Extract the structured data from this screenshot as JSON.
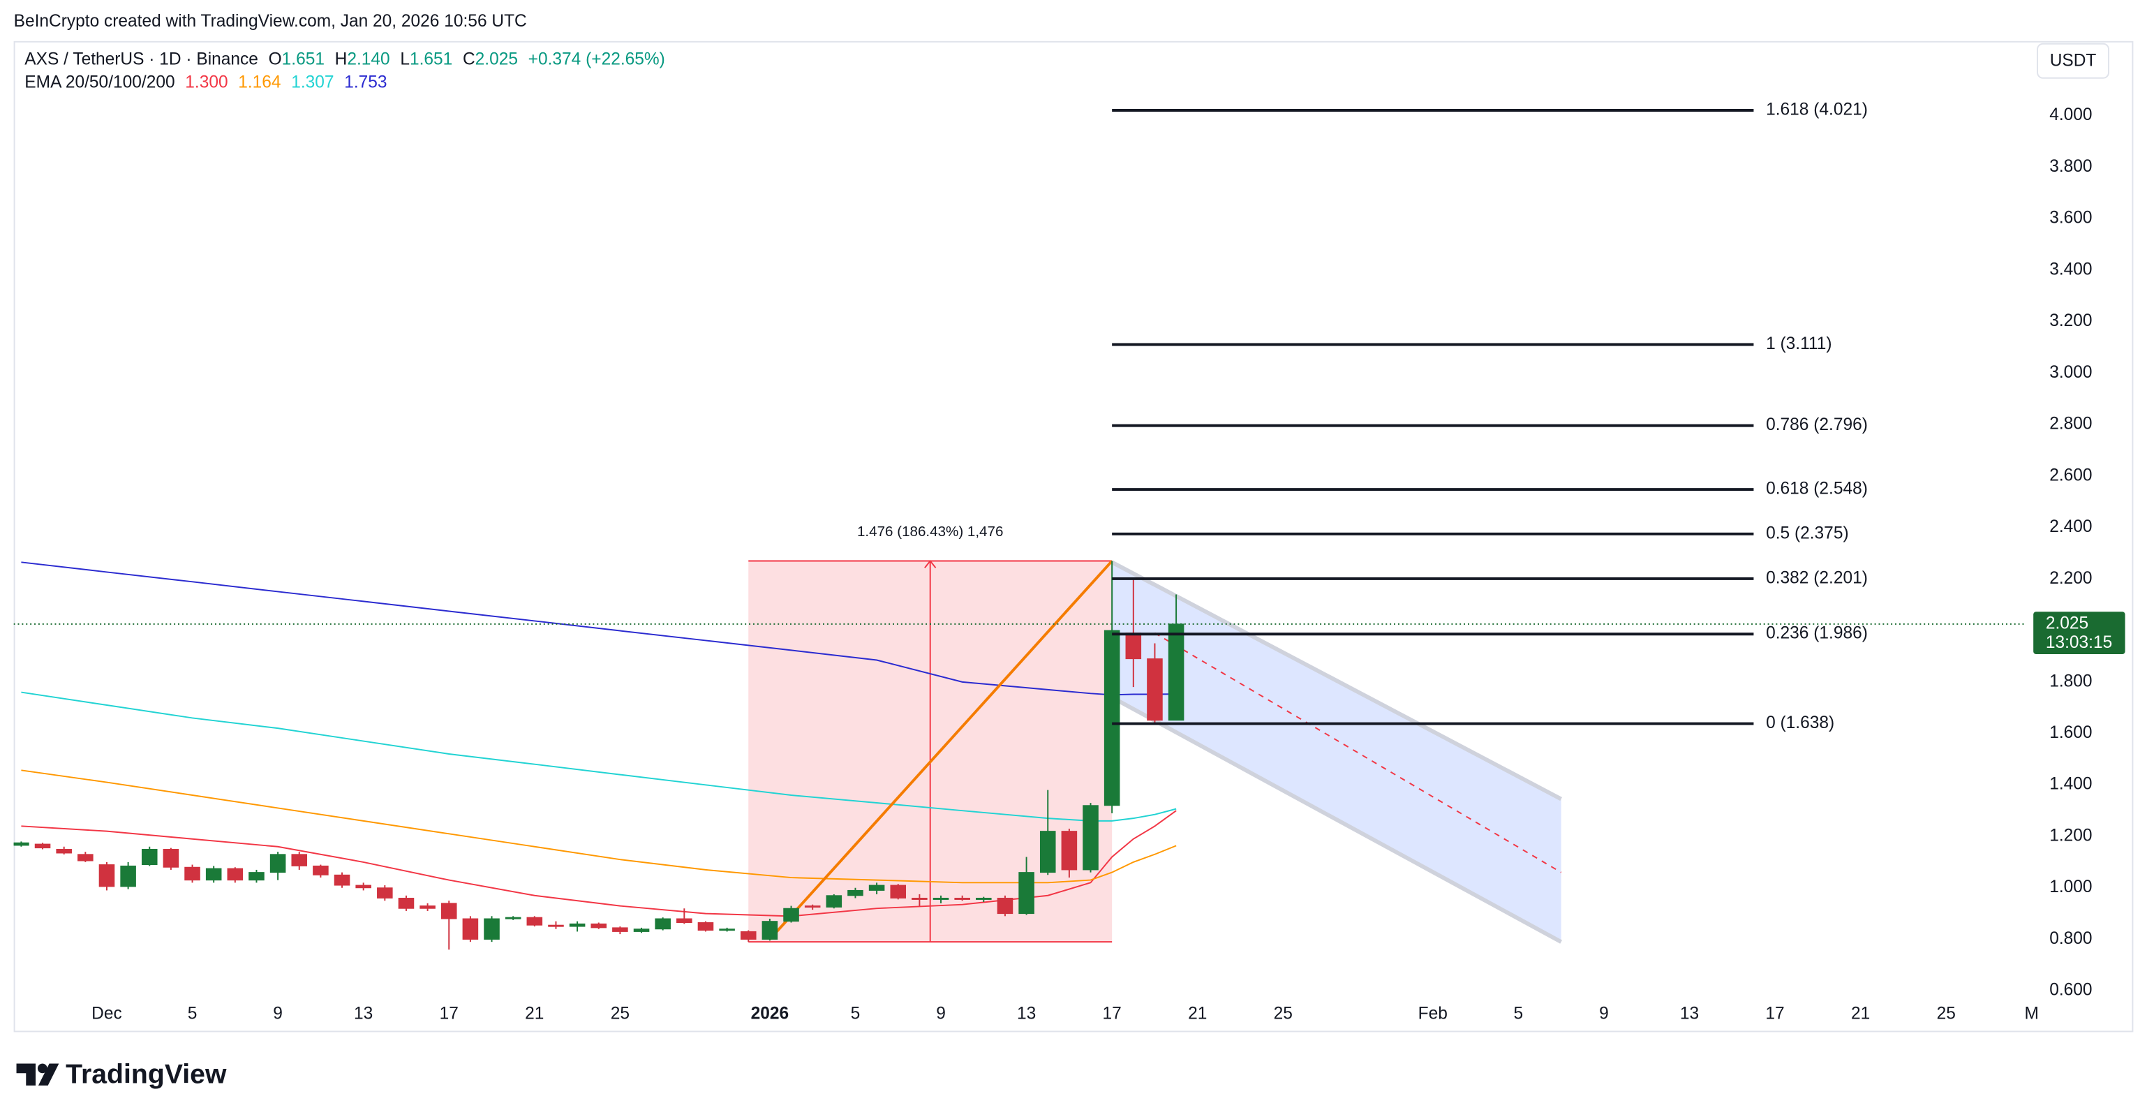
{
  "header": "BeInCrypto created with TradingView.com, Jan 20, 2026 10:56 UTC",
  "logo": "TradingView",
  "currency_button": "USDT",
  "chart_data": {
    "type": "candlestick",
    "symbol": "AXS / TetherUS · 1D · Binance",
    "ohlc_legend": [
      {
        "key": "O",
        "value": "1.651"
      },
      {
        "key": "H",
        "value": "2.140"
      },
      {
        "key": "L",
        "value": "1.651"
      },
      {
        "key": "C",
        "value": "2.025"
      }
    ],
    "change": "+0.374 (+22.65%)",
    "ema_legend": {
      "label": "EMA 20/50/100/200",
      "values": [
        "1.300",
        "1.164",
        "1.307",
        "1.753"
      ]
    },
    "up_color": "#1a7a38",
    "down_color": "#d0323f",
    "x": [
      "Nov 27",
      "Nov 28",
      "Nov 29",
      "Nov 30",
      "Dec 1",
      "Dec 2",
      "Dec 3",
      "Dec 4",
      "Dec 5",
      "Dec 6",
      "Dec 7",
      "Dec 8",
      "Dec 9",
      "Dec 10",
      "Dec 11",
      "Dec 12",
      "Dec 13",
      "Dec 14",
      "Dec 15",
      "Dec 16",
      "Dec 17",
      "Dec 18",
      "Dec 19",
      "Dec 20",
      "Dec 21",
      "Dec 22",
      "Dec 23",
      "Dec 24",
      "Dec 25",
      "Dec 26",
      "Dec 27",
      "Dec 28",
      "Dec 29",
      "Dec 30",
      "Dec 31",
      "Jan 1",
      "Jan 2",
      "Jan 3",
      "Jan 4",
      "Jan 5",
      "Jan 6",
      "Jan 7",
      "Jan 8",
      "Jan 9",
      "Jan 10",
      "Jan 11",
      "Jan 12",
      "Jan 13",
      "Jan 14",
      "Jan 15",
      "Jan 16",
      "Jan 17",
      "Jan 18",
      "Jan 19",
      "Jan 20"
    ],
    "open": [
      1.165,
      1.17,
      1.15,
      1.13,
      1.09,
      1.005,
      1.09,
      1.15,
      1.08,
      1.03,
      1.075,
      1.03,
      1.06,
      1.13,
      1.085,
      1.05,
      1.01,
      1.0,
      0.96,
      0.93,
      0.94,
      0.88,
      0.8,
      0.88,
      0.885,
      0.855,
      0.85,
      0.86,
      0.845,
      0.83,
      0.84,
      0.88,
      0.865,
      0.835,
      0.83,
      0.8,
      0.87,
      0.93,
      0.925,
      0.97,
      0.99,
      1.01,
      0.96,
      0.955,
      0.96,
      0.955,
      0.96,
      0.9,
      1.06,
      1.22,
      1.07,
      1.32,
      1.99,
      1.89,
      1.651
    ],
    "high": [
      1.18,
      1.175,
      1.16,
      1.14,
      1.1,
      1.1,
      1.16,
      1.155,
      1.09,
      1.085,
      1.08,
      1.07,
      1.14,
      1.14,
      1.09,
      1.06,
      1.02,
      1.01,
      0.97,
      0.94,
      0.95,
      0.89,
      0.89,
      0.89,
      0.89,
      0.87,
      0.87,
      0.865,
      0.85,
      0.845,
      0.885,
      0.92,
      0.87,
      0.845,
      0.835,
      0.88,
      0.93,
      0.935,
      0.975,
      1.0,
      1.02,
      1.015,
      0.975,
      0.97,
      0.97,
      0.965,
      0.97,
      1.12,
      1.38,
      1.23,
      1.33,
      2.27,
      2.2,
      1.95,
      2.14
    ],
    "low": [
      1.16,
      1.15,
      1.13,
      1.1,
      0.99,
      0.995,
      1.085,
      1.07,
      1.02,
      1.02,
      1.02,
      1.02,
      1.03,
      1.07,
      1.04,
      1.0,
      0.99,
      0.95,
      0.91,
      0.91,
      0.76,
      0.79,
      0.79,
      0.875,
      0.85,
      0.84,
      0.83,
      0.84,
      0.82,
      0.825,
      0.835,
      0.86,
      0.83,
      0.83,
      0.79,
      0.795,
      0.865,
      0.915,
      0.92,
      0.96,
      0.975,
      0.955,
      0.93,
      0.94,
      0.95,
      0.945,
      0.89,
      0.895,
      1.05,
      1.04,
      1.06,
      1.29,
      1.78,
      1.64,
      1.651
    ],
    "close": [
      1.175,
      1.155,
      1.135,
      1.105,
      1.005,
      1.085,
      1.15,
      1.08,
      1.03,
      1.075,
      1.03,
      1.06,
      1.13,
      1.085,
      1.05,
      1.01,
      1.0,
      0.96,
      0.92,
      0.92,
      0.88,
      0.8,
      0.88,
      0.885,
      0.855,
      0.85,
      0.86,
      0.845,
      0.83,
      0.84,
      0.88,
      0.865,
      0.835,
      0.84,
      0.8,
      0.87,
      0.92,
      0.925,
      0.97,
      0.99,
      1.01,
      0.96,
      0.955,
      0.96,
      0.955,
      0.96,
      0.9,
      1.06,
      1.22,
      1.07,
      1.32,
      2.0,
      1.89,
      1.651,
      2.025
    ],
    "series": [
      {
        "color": "#f23645",
        "x": [
          "Nov 27",
          "Dec 1",
          "Dec 5",
          "Dec 9",
          "Dec 13",
          "Dec 17",
          "Dec 21",
          "Dec 25",
          "Dec 29",
          "Jan 2",
          "Jan 6",
          "Jan 10",
          "Jan 14",
          "Jan 16",
          "Jan 17",
          "Jan 18",
          "Jan 19",
          "Jan 20"
        ],
        "values": [
          1.24,
          1.22,
          1.19,
          1.16,
          1.1,
          1.03,
          0.97,
          0.93,
          0.9,
          0.89,
          0.92,
          0.935,
          0.97,
          1.02,
          1.12,
          1.19,
          1.24,
          1.3
        ]
      },
      {
        "color": "#ff9800",
        "x": [
          "Nov 27",
          "Dec 1",
          "Dec 5",
          "Dec 9",
          "Dec 13",
          "Dec 17",
          "Dec 21",
          "Dec 25",
          "Dec 29",
          "Jan 2",
          "Jan 6",
          "Jan 10",
          "Jan 14",
          "Jan 16",
          "Jan 17",
          "Jan 18",
          "Jan 19",
          "Jan 20"
        ],
        "values": [
          1.457,
          1.41,
          1.36,
          1.31,
          1.26,
          1.21,
          1.16,
          1.11,
          1.07,
          1.04,
          1.03,
          1.02,
          1.02,
          1.03,
          1.06,
          1.1,
          1.13,
          1.164
        ]
      },
      {
        "color": "#22d3d3",
        "x": [
          "Nov 27",
          "Dec 1",
          "Dec 5",
          "Dec 9",
          "Dec 13",
          "Dec 17",
          "Dec 21",
          "Dec 25",
          "Dec 29",
          "Jan 2",
          "Jan 6",
          "Jan 10",
          "Jan 14",
          "Jan 16",
          "Jan 17",
          "Jan 18",
          "Jan 19",
          "Jan 20"
        ],
        "values": [
          1.76,
          1.71,
          1.66,
          1.62,
          1.57,
          1.52,
          1.48,
          1.44,
          1.4,
          1.36,
          1.33,
          1.3,
          1.27,
          1.26,
          1.26,
          1.27,
          1.285,
          1.307
        ]
      },
      {
        "color": "#2b2bd0",
        "x": [
          "Nov 27",
          "Dec 1",
          "Dec 5",
          "Dec 9",
          "Dec 13",
          "Dec 17",
          "Dec 21",
          "Dec 25",
          "Dec 29",
          "Jan 2",
          "Jan 6",
          "Jan 10",
          "Jan 14",
          "Jan 16",
          "Jan 17",
          "Jan 18",
          "Jan 19",
          "Jan 20"
        ],
        "values": [
          2.265,
          2.227,
          2.189,
          2.151,
          2.113,
          2.075,
          2.037,
          1.999,
          1.961,
          1.923,
          1.885,
          1.8,
          1.77,
          1.755,
          1.75,
          1.752,
          1.752,
          1.753
        ]
      }
    ],
    "ylim": [
      0.45,
      4.29
    ],
    "yticks": [
      {
        "value": 0.6,
        "label": "0.600"
      },
      {
        "value": 0.8,
        "label": "0.800"
      },
      {
        "value": 1.0,
        "label": "1.000"
      },
      {
        "value": 1.2,
        "label": "1.200"
      },
      {
        "value": 1.4,
        "label": "1.400"
      },
      {
        "value": 1.6,
        "label": "1.600"
      },
      {
        "value": 1.8,
        "label": "1.800"
      },
      {
        "value": 2.0,
        "label": "2.000"
      },
      {
        "value": 2.2,
        "label": "2.200"
      },
      {
        "value": 2.4,
        "label": "2.400"
      },
      {
        "value": 2.6,
        "label": "2.600"
      },
      {
        "value": 2.8,
        "label": "2.800"
      },
      {
        "value": 3.0,
        "label": "3.000"
      },
      {
        "value": 3.2,
        "label": "3.200"
      },
      {
        "value": 3.4,
        "label": "3.400"
      },
      {
        "value": 3.6,
        "label": "3.600"
      },
      {
        "value": 3.8,
        "label": "3.800"
      },
      {
        "value": 4.0,
        "label": "4.000"
      }
    ],
    "xticks": [
      {
        "value": "Dec 1",
        "label": "Dec"
      },
      {
        "value": "Dec 5",
        "label": "5"
      },
      {
        "value": "Dec 9",
        "label": "9"
      },
      {
        "value": "Dec 13",
        "label": "13"
      },
      {
        "value": "Dec 17",
        "label": "17"
      },
      {
        "value": "Dec 21",
        "label": "21"
      },
      {
        "value": "Dec 25",
        "label": "25"
      },
      {
        "value": "Jan 1",
        "label": "2026"
      },
      {
        "value": "Jan 5",
        "label": "5"
      },
      {
        "value": "Jan 9",
        "label": "9"
      },
      {
        "value": "Jan 13",
        "label": "13"
      },
      {
        "value": "Jan 17",
        "label": "17"
      },
      {
        "value": "Jan 21",
        "label": "21"
      },
      {
        "value": "Jan 25",
        "label": "25"
      },
      {
        "value": "Feb 1",
        "label": "Feb"
      },
      {
        "value": "Feb 5",
        "label": "5"
      },
      {
        "value": "Feb 9",
        "label": "9"
      },
      {
        "value": "Feb 13",
        "label": "13"
      },
      {
        "value": "Feb 17",
        "label": "17"
      },
      {
        "value": "Feb 21",
        "label": "21"
      },
      {
        "value": "Feb 25",
        "label": "25"
      },
      {
        "value": "Mar 1",
        "label": "M"
      }
    ],
    "grid": false,
    "last_price": {
      "value": 2.025,
      "label": "2.025",
      "countdown": "13:03:15",
      "color": "#1a6b31"
    },
    "fib": {
      "x": [
        "Jan 17",
        "Feb 16"
      ],
      "levels": [
        {
          "value": 4.021,
          "label": "1.618 (4.021)"
        },
        {
          "value": 3.111,
          "label": "1 (3.111)"
        },
        {
          "value": 2.796,
          "label": "0.786 (2.796)"
        },
        {
          "value": 2.548,
          "label": "0.618 (2.548)"
        },
        {
          "value": 2.375,
          "label": "0.5 (2.375)"
        },
        {
          "value": 2.201,
          "label": "0.382 (2.201)"
        },
        {
          "value": 1.986,
          "label": "0.236 (1.986)"
        },
        {
          "value": 1.638,
          "label": "0 (1.638)"
        }
      ]
    },
    "range": {
      "x": [
        "Dec 31",
        "Jan 17"
      ],
      "y": [
        0.79,
        2.27
      ],
      "label": "1.476 (186.43%) 1,476"
    },
    "trend": {
      "x": [
        "Jan 1",
        "Jan 17"
      ],
      "y": [
        0.8,
        2.27
      ],
      "color": "#f57c00"
    },
    "channel": {
      "top": {
        "x": [
          "Jan 17",
          "Feb 7"
        ],
        "y": [
          2.265,
          1.345
        ]
      },
      "bottom": {
        "x": [
          "Jan 17",
          "Feb 7"
        ],
        "y": [
          1.74,
          0.79
        ]
      },
      "mid": {
        "x": [
          "Jan 19",
          "Feb 7"
        ],
        "y": [
          1.99,
          1.06
        ]
      }
    }
  }
}
